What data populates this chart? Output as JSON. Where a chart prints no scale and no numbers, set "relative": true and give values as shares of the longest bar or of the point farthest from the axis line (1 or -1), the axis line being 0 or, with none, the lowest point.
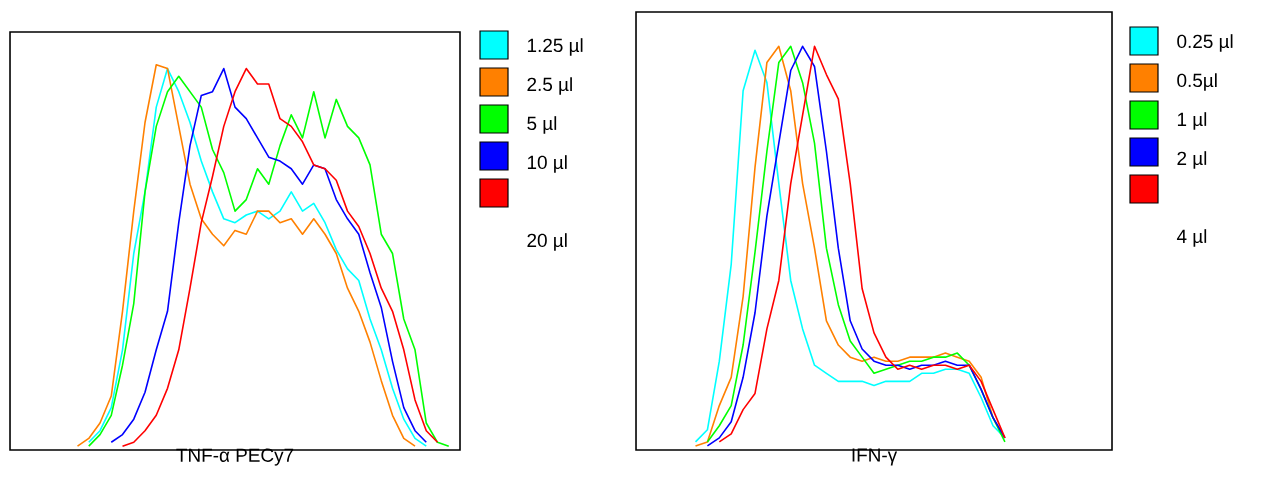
{
  "chart_data": [
    {
      "type": "line",
      "relative": true,
      "xlabel": "TNF-α PECy7",
      "legend": "right",
      "annotations": [
        "20 µl"
      ],
      "categories": [
        null,
        null,
        null,
        null,
        null,
        null,
        null,
        null,
        null,
        null,
        null,
        null,
        null,
        null,
        null,
        null,
        null,
        null,
        null,
        null,
        null,
        null,
        null,
        null,
        null,
        null,
        null,
        null,
        null,
        null,
        null,
        null,
        null,
        null,
        null,
        null,
        null,
        null,
        null,
        null,
        null
      ],
      "series": [
        {
          "name": "1.25 µl",
          "color": "#00ffff",
          "values": [
            null,
            null,
            null,
            null,
            null,
            null,
            null,
            0.02,
            0.05,
            0.11,
            0.26,
            0.51,
            0.67,
            0.89,
            0.99,
            0.93,
            0.85,
            0.75,
            0.67,
            0.6,
            0.59,
            0.61,
            0.62,
            0.6,
            0.62,
            0.67,
            0.62,
            0.64,
            0.59,
            0.52,
            0.47,
            0.44,
            0.34,
            0.26,
            0.16,
            0.08,
            0.03,
            0.01,
            null,
            null,
            null
          ]
        },
        {
          "name": "2.5 µl",
          "color": "#ff8000",
          "values": [
            null,
            null,
            null,
            null,
            null,
            null,
            0.01,
            0.03,
            0.07,
            0.14,
            0.36,
            0.62,
            0.85,
            1.0,
            0.99,
            0.84,
            0.69,
            0.6,
            0.56,
            0.53,
            0.57,
            0.56,
            0.62,
            0.62,
            0.59,
            0.6,
            0.56,
            0.6,
            0.56,
            0.51,
            0.42,
            0.36,
            0.28,
            0.18,
            0.09,
            0.03,
            0.01,
            null,
            null,
            null,
            null
          ]
        },
        {
          "name": "5 µl",
          "color": "#00ff00",
          "values": [
            null,
            null,
            null,
            null,
            null,
            null,
            null,
            0.01,
            0.04,
            0.09,
            0.22,
            0.38,
            0.67,
            0.84,
            0.93,
            0.97,
            0.93,
            0.89,
            0.78,
            0.72,
            0.62,
            0.65,
            0.73,
            0.69,
            0.79,
            0.87,
            0.81,
            0.93,
            0.81,
            0.91,
            0.84,
            0.81,
            0.74,
            0.56,
            0.51,
            0.34,
            0.26,
            0.07,
            0.02,
            0.01,
            null
          ]
        },
        {
          "name": "10 µl",
          "color": "#0000ff",
          "values": [
            null,
            null,
            null,
            null,
            null,
            null,
            null,
            null,
            null,
            0.02,
            0.04,
            0.08,
            0.15,
            0.26,
            0.36,
            0.59,
            0.79,
            0.92,
            0.93,
            0.99,
            0.89,
            0.86,
            0.81,
            0.76,
            0.75,
            0.73,
            0.69,
            0.74,
            0.73,
            0.65,
            0.6,
            0.56,
            0.46,
            0.37,
            0.23,
            0.11,
            0.05,
            0.02,
            null,
            null,
            null
          ]
        },
        {
          "color": "#ff0000",
          "values": [
            null,
            null,
            null,
            null,
            null,
            null,
            null,
            null,
            null,
            null,
            0.01,
            0.02,
            0.05,
            0.09,
            0.16,
            0.26,
            0.42,
            0.59,
            0.71,
            0.84,
            0.93,
            0.99,
            0.95,
            0.95,
            0.86,
            0.84,
            0.8,
            0.74,
            0.73,
            0.7,
            0.62,
            0.58,
            0.51,
            0.42,
            0.36,
            0.26,
            0.13,
            0.05,
            0.02,
            null,
            null
          ]
        }
      ]
    },
    {
      "type": "line",
      "relative": true,
      "xlabel": "IFN-γ",
      "legend": "right",
      "annotations": [
        "4 µl"
      ],
      "categories": [
        null,
        null,
        null,
        null,
        null,
        null,
        null,
        null,
        null,
        null,
        null,
        null,
        null,
        null,
        null,
        null,
        null,
        null,
        null,
        null,
        null,
        null,
        null,
        null,
        null,
        null,
        null,
        null,
        null,
        null,
        null,
        null,
        null,
        null,
        null,
        null,
        null,
        null,
        null,
        null,
        null
      ],
      "series": [
        {
          "name": "0.25 µl",
          "color": "#00ffff",
          "values": [
            null,
            null,
            null,
            null,
            null,
            0.02,
            0.05,
            0.22,
            0.46,
            0.89,
            0.99,
            0.91,
            0.66,
            0.42,
            0.3,
            0.21,
            0.19,
            0.17,
            0.17,
            0.17,
            0.16,
            0.17,
            0.17,
            0.17,
            0.19,
            0.19,
            0.2,
            0.2,
            0.19,
            0.13,
            0.06,
            0.03,
            null,
            null,
            null,
            null,
            null,
            null,
            null,
            null,
            null
          ]
        },
        {
          "name": "0.5µl",
          "color": "#ff8000",
          "values": [
            null,
            null,
            null,
            null,
            null,
            0.01,
            0.02,
            0.11,
            0.18,
            0.38,
            0.7,
            0.96,
            1.0,
            0.89,
            0.66,
            0.5,
            0.32,
            0.26,
            0.23,
            0.22,
            0.23,
            0.22,
            0.22,
            0.23,
            0.23,
            0.23,
            0.24,
            0.23,
            0.22,
            0.18,
            0.08,
            0.03,
            null,
            null,
            null,
            null,
            null,
            null,
            null,
            null,
            null
          ]
        },
        {
          "name": "1 µl",
          "color": "#00ff00",
          "values": [
            null,
            null,
            null,
            null,
            null,
            null,
            0.02,
            0.06,
            0.11,
            0.26,
            0.49,
            0.74,
            0.96,
            1.0,
            0.91,
            0.76,
            0.5,
            0.36,
            0.27,
            0.23,
            0.19,
            0.2,
            0.21,
            0.22,
            0.22,
            0.23,
            0.23,
            0.24,
            0.21,
            0.15,
            0.08,
            0.02,
            null,
            null,
            null,
            null,
            null,
            null,
            null,
            null,
            null
          ]
        },
        {
          "name": "2 µl",
          "color": "#0000ff",
          "values": [
            null,
            null,
            null,
            null,
            null,
            null,
            0.01,
            0.03,
            0.07,
            0.18,
            0.34,
            0.58,
            0.76,
            0.94,
            1.0,
            0.95,
            0.74,
            0.5,
            0.32,
            0.25,
            0.22,
            0.21,
            0.21,
            0.2,
            0.21,
            0.21,
            0.22,
            0.21,
            0.21,
            0.15,
            0.08,
            0.03,
            null,
            null,
            null,
            null,
            null,
            null,
            null,
            null,
            null
          ]
        },
        {
          "color": "#ff0000",
          "values": [
            null,
            null,
            null,
            null,
            null,
            null,
            null,
            0.02,
            0.04,
            0.1,
            0.14,
            0.3,
            0.42,
            0.66,
            0.83,
            1.0,
            0.93,
            0.87,
            0.66,
            0.4,
            0.29,
            0.23,
            0.2,
            0.21,
            0.2,
            0.21,
            0.21,
            0.2,
            0.21,
            0.17,
            0.1,
            0.03,
            null,
            null,
            null,
            null,
            null,
            null,
            null,
            null,
            null
          ]
        }
      ]
    }
  ]
}
